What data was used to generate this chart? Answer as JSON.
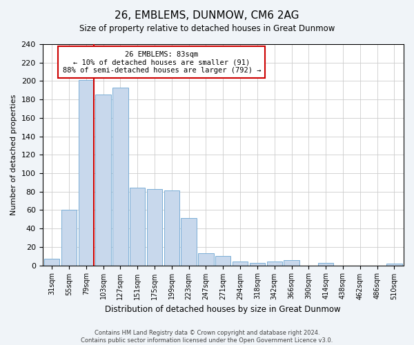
{
  "title": "26, EMBLEMS, DUNMOW, CM6 2AG",
  "subtitle": "Size of property relative to detached houses in Great Dunmow",
  "xlabel": "Distribution of detached houses by size in Great Dunmow",
  "ylabel": "Number of detached properties",
  "categories": [
    "31sqm",
    "55sqm",
    "79sqm",
    "103sqm",
    "127sqm",
    "151sqm",
    "175sqm",
    "199sqm",
    "223sqm",
    "247sqm",
    "271sqm",
    "294sqm",
    "318sqm",
    "342sqm",
    "366sqm",
    "390sqm",
    "414sqm",
    "438sqm",
    "462sqm",
    "486sqm",
    "510sqm"
  ],
  "values": [
    7,
    60,
    201,
    185,
    193,
    84,
    83,
    81,
    51,
    13,
    10,
    4,
    3,
    4,
    6,
    0,
    3,
    0,
    0,
    0,
    2
  ],
  "bar_color": "#c8d8ec",
  "bar_edge_color": "#7aaed6",
  "ylim": [
    0,
    240
  ],
  "yticks": [
    0,
    20,
    40,
    60,
    80,
    100,
    120,
    140,
    160,
    180,
    200,
    220,
    240
  ],
  "property_label": "26 EMBLEMS: 83sqm",
  "annotation_line1": "← 10% of detached houses are smaller (91)",
  "annotation_line2": "88% of semi-detached houses are larger (792) →",
  "vline_bar_index": 2,
  "vline_color": "#cc0000",
  "annotation_box_color": "#ffffff",
  "annotation_box_edge": "#cc0000",
  "footer_line1": "Contains HM Land Registry data © Crown copyright and database right 2024.",
  "footer_line2": "Contains public sector information licensed under the Open Government Licence v3.0.",
  "background_color": "#f0f4f8",
  "plot_bg_color": "#ffffff"
}
